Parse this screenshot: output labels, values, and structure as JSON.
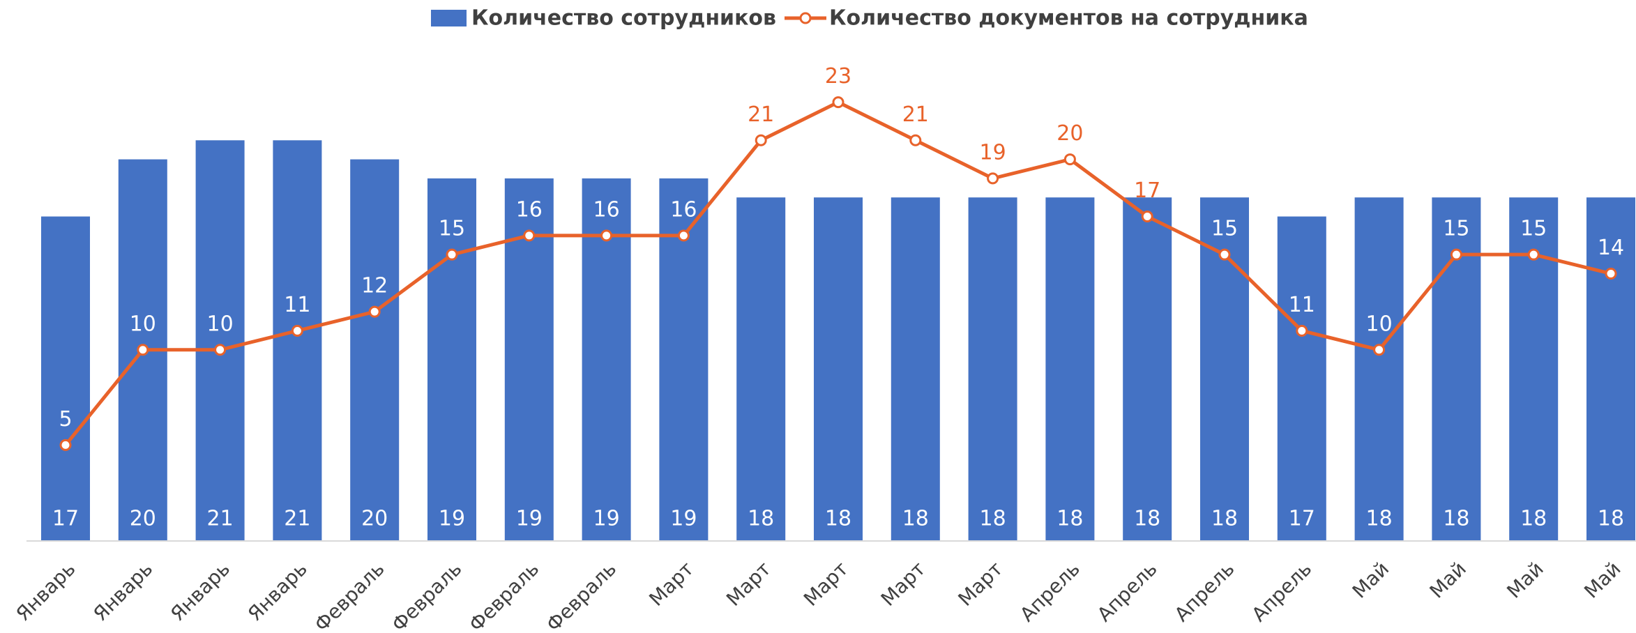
{
  "chart_data": {
    "type": "bar_line",
    "categories": [
      "Январь",
      "Январь",
      "Январь",
      "Январь",
      "Февраль",
      "Февраль",
      "Февраль",
      "Февраль",
      "Март",
      "Март",
      "Март",
      "Март",
      "Март",
      "Апрель",
      "Апрель",
      "Апрель",
      "Апрель",
      "Май",
      "Май",
      "Май",
      "Май"
    ],
    "series": [
      {
        "name": "Количество сотрудников",
        "type": "bar",
        "color": "#4472c4",
        "values": [
          17,
          20,
          21,
          21,
          20,
          19,
          19,
          19,
          19,
          18,
          18,
          18,
          18,
          18,
          18,
          18,
          17,
          18,
          18,
          18,
          18
        ]
      },
      {
        "name": "Количество документов на сотрудника",
        "type": "line",
        "axis": "y2",
        "color": "#e8622a",
        "values": [
          5,
          10,
          10,
          11,
          12,
          15,
          16,
          16,
          16,
          21,
          23,
          21,
          19,
          20,
          17,
          15,
          11,
          10,
          15,
          15,
          14
        ]
      }
    ],
    "ylim": [
      0,
      28
    ],
    "y2lim": [
      0,
      28
    ],
    "legend": "top",
    "grid": false
  }
}
